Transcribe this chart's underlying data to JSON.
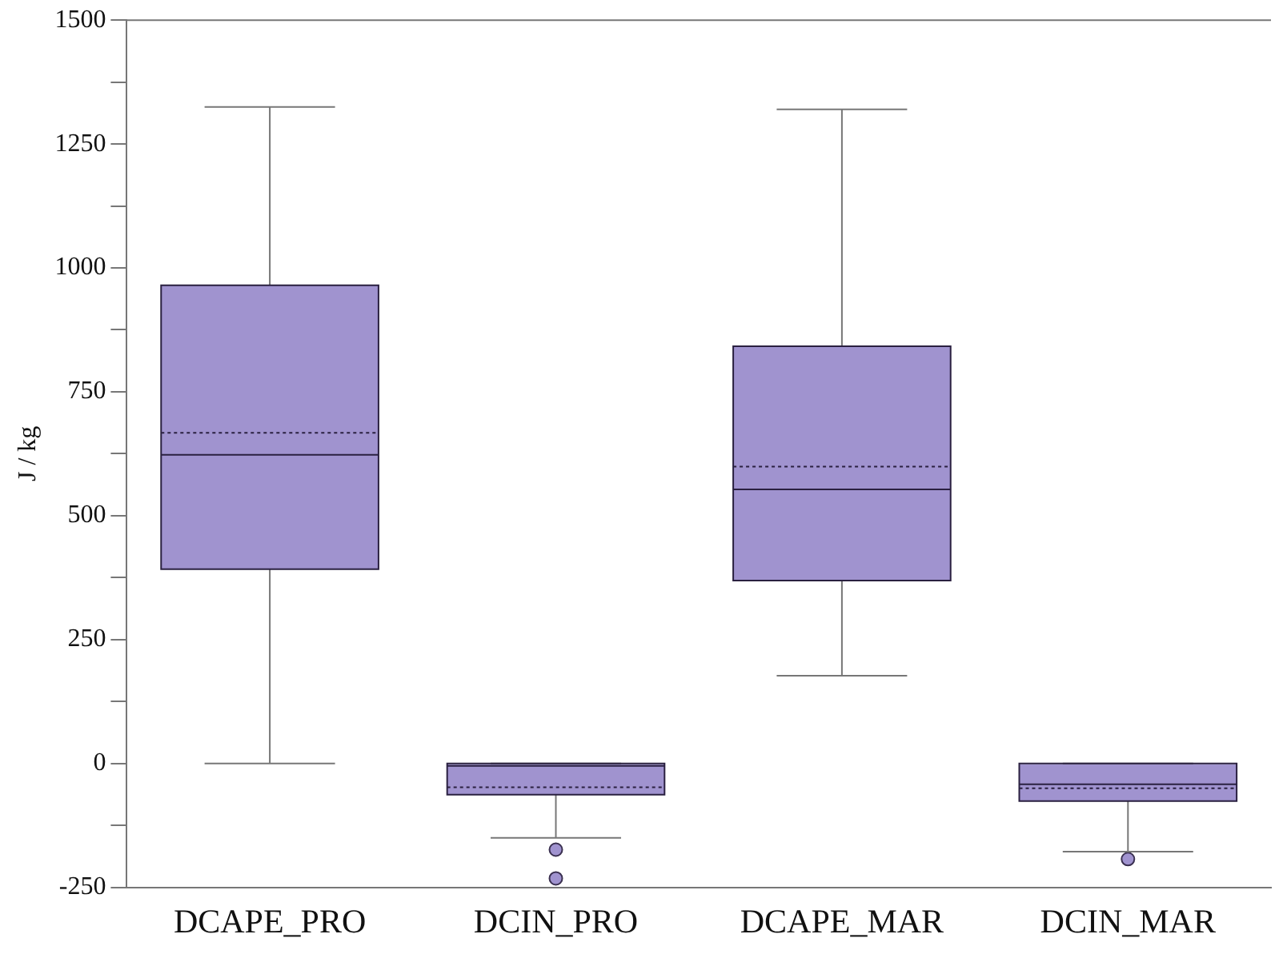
{
  "chart_data": {
    "type": "box",
    "ylabel": "J / kg",
    "categories": [
      "DCAPE_PRO",
      "DCIN_PRO",
      "DCAPE_MAR",
      "DCIN_MAR"
    ],
    "color": "#a093cf",
    "boxes": [
      {
        "low": 0,
        "q1": 392,
        "median": 623,
        "q3": 965,
        "high": 1325,
        "mean": 667
      },
      {
        "low": -150,
        "q1": -63,
        "median": -5,
        "q3": 0,
        "high": 0,
        "mean": -48,
        "outliers": [
          -174,
          -232
        ]
      },
      {
        "low": 177,
        "q1": 369,
        "median": 553,
        "q3": 842,
        "high": 1320,
        "mean": 599
      },
      {
        "low": -178,
        "q1": -76,
        "median": -42,
        "q3": 0,
        "high": 0,
        "mean": -50,
        "outliers": [
          -193
        ]
      }
    ],
    "ylim": [
      -250,
      1500
    ],
    "yticks": [
      -250,
      {
        "value": -125,
        "label": null
      },
      0,
      {
        "value": 125,
        "label": null
      },
      250,
      {
        "value": 375,
        "label": null
      },
      500,
      {
        "value": 625,
        "label": null
      },
      750,
      {
        "value": 875,
        "label": null
      },
      1000,
      {
        "value": 1125,
        "label": null
      },
      1250,
      {
        "value": 1375,
        "label": null
      },
      1500
    ],
    "grid": false,
    "legend": false
  }
}
